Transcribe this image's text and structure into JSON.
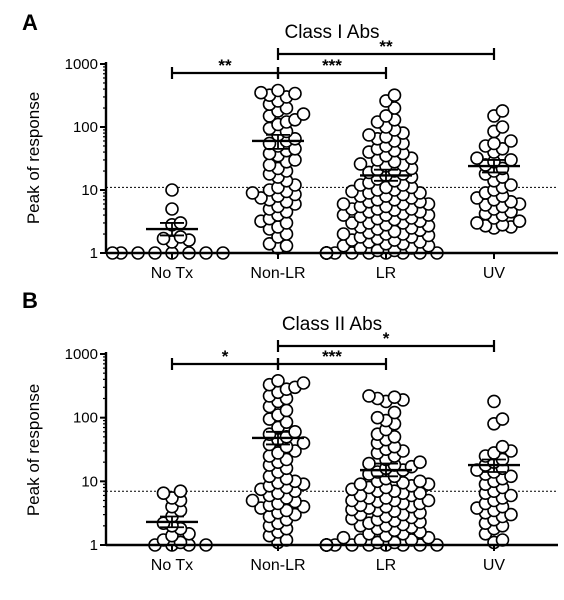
{
  "chart_data": [
    {
      "type": "scatter",
      "panel_label": "A",
      "title": "Class I Abs",
      "ylabel": "Peak of response",
      "xlabel": "",
      "y_scale": "log",
      "ylim": [
        1,
        1000
      ],
      "y_ticks": [
        1,
        10,
        100,
        1000
      ],
      "y_tick_labels": [
        "1",
        "10",
        "100",
        "1000"
      ],
      "categories": [
        "No Tx",
        "Non-LR",
        "LR",
        "UV"
      ],
      "threshold": 11,
      "threshold_style": "dotted",
      "groups": [
        {
          "name": "No Tx",
          "mean": 2.4,
          "sem_low": 1.9,
          "sem_high": 3.0,
          "values": [
            10,
            5,
            2.8,
            3,
            1.8,
            1.7,
            1.6,
            1.5,
            1,
            1,
            1,
            1,
            1,
            1,
            1,
            1
          ]
        },
        {
          "name": "Non-LR",
          "mean": 60,
          "sem_low": 45,
          "sem_high": 75,
          "values": [
            380,
            350,
            340,
            320,
            300,
            260,
            230,
            200,
            180,
            160,
            150,
            130,
            120,
            110,
            95,
            85,
            75,
            65,
            60,
            55,
            50,
            45,
            42,
            38,
            35,
            30,
            28,
            25,
            22,
            20,
            18,
            16,
            14,
            12,
            11,
            10,
            9.5,
            9,
            8.5,
            8,
            7.5,
            7,
            6.5,
            6,
            5.5,
            5,
            4.5,
            4,
            3.5,
            3.2,
            3,
            2.6,
            2.4,
            2,
            1.8,
            1.4,
            1.3,
            1.2
          ]
        },
        {
          "name": "LR",
          "mean": 17,
          "sem_low": 14,
          "sem_high": 21,
          "values": [
            320,
            260,
            200,
            150,
            130,
            120,
            100,
            90,
            80,
            75,
            70,
            65,
            60,
            55,
            50,
            45,
            42,
            40,
            38,
            35,
            32,
            30,
            28,
            26,
            25,
            24,
            22,
            21,
            20,
            19,
            18,
            17,
            16,
            15,
            14,
            13,
            12,
            12,
            11,
            11,
            10,
            10,
            9.5,
            9,
            9,
            8.5,
            8,
            8,
            7.5,
            7,
            7,
            6.5,
            6.5,
            6,
            6,
            6,
            5.5,
            5.5,
            5,
            5,
            5,
            4.8,
            4.5,
            4.5,
            4.2,
            4,
            4,
            4,
            3.8,
            3.6,
            3.5,
            3.4,
            3.2,
            3,
            3,
            3,
            2.8,
            2.7,
            2.6,
            2.5,
            2.4,
            2.3,
            2.2,
            2.1,
            2,
            2,
            2,
            1.9,
            1.8,
            1.8,
            1.7,
            1.6,
            1.6,
            1.5,
            1.5,
            1.4,
            1.4,
            1.3,
            1.3,
            1.2,
            1.2,
            1.1,
            1.1,
            1,
            1,
            1,
            1,
            1,
            1,
            1,
            1,
            1,
            1,
            1,
            1,
            1,
            1,
            1
          ]
        },
        {
          "name": "UV",
          "mean": 24,
          "sem_low": 19,
          "sem_high": 30,
          "values": [
            180,
            150,
            100,
            85,
            60,
            55,
            50,
            45,
            40,
            32,
            30,
            28,
            25,
            22,
            20,
            18,
            16,
            14,
            12,
            11,
            10,
            9,
            8,
            7.5,
            7,
            6.5,
            6,
            5.8,
            5.5,
            5,
            4.5,
            4.2,
            4,
            3.6,
            3.2,
            3,
            2.8,
            2.7,
            2.6,
            2.5
          ]
        }
      ],
      "significance": [
        {
          "from": "No Tx",
          "to": "Non-LR",
          "label": "**",
          "y": 700
        },
        {
          "from": "Non-LR",
          "to": "LR",
          "label": "***",
          "y": 700
        },
        {
          "from": "Non-LR",
          "to": "UV",
          "label": "**",
          "y": 1900
        }
      ]
    },
    {
      "type": "scatter",
      "panel_label": "B",
      "title": "Class II Abs",
      "ylabel": "Peak of response",
      "xlabel": "",
      "y_scale": "log",
      "ylim": [
        1,
        1000
      ],
      "y_ticks": [
        1,
        10,
        100,
        1000
      ],
      "y_tick_labels": [
        "1",
        "10",
        "100",
        "1000"
      ],
      "categories": [
        "No Tx",
        "Non-LR",
        "LR",
        "UV"
      ],
      "threshold": 7,
      "threshold_style": "dotted",
      "groups": [
        {
          "name": "No Tx",
          "mean": 2.3,
          "sem_low": 1.9,
          "sem_high": 2.8,
          "values": [
            7,
            6.5,
            5.5,
            5,
            4,
            3.5,
            2.8,
            2.2,
            2,
            1.8,
            1.5,
            1.4,
            1.2,
            1.1,
            1,
            1,
            1,
            1
          ]
        },
        {
          "name": "Non-LR",
          "mean": 48,
          "sem_low": 38,
          "sem_high": 60,
          "values": [
            380,
            350,
            330,
            300,
            280,
            250,
            220,
            200,
            180,
            150,
            130,
            110,
            95,
            85,
            70,
            60,
            55,
            50,
            45,
            40,
            38,
            35,
            30,
            28,
            25,
            22,
            20,
            18,
            16,
            14,
            12,
            11,
            10,
            9.5,
            9,
            8.5,
            8,
            7.5,
            7,
            6.5,
            6,
            5.5,
            5,
            4.8,
            4.5,
            4.2,
            4,
            3.8,
            3.5,
            3.2,
            3,
            2.8,
            2.5,
            2.2,
            2,
            1.8,
            1.6,
            1.4,
            1.2,
            1.1
          ]
        },
        {
          "name": "LR",
          "mean": 15,
          "sem_low": 12,
          "sem_high": 19,
          "values": [
            220,
            210,
            200,
            190,
            180,
            120,
            100,
            90,
            80,
            65,
            55,
            50,
            45,
            40,
            35,
            32,
            30,
            28,
            25,
            22,
            20,
            19,
            18,
            17,
            16,
            15,
            14,
            13,
            12,
            11,
            10,
            10,
            9.5,
            9,
            9,
            8.5,
            8,
            8,
            7.5,
            7,
            7,
            6.5,
            6.5,
            6,
            6,
            5.5,
            5.5,
            5,
            5,
            5,
            4.8,
            4.5,
            4.5,
            4.2,
            4,
            4,
            3.8,
            3.6,
            3.5,
            3.4,
            3.2,
            3,
            3,
            2.8,
            2.7,
            2.6,
            2.5,
            2.4,
            2.3,
            2.2,
            2.1,
            2,
            2,
            1.9,
            1.8,
            1.7,
            1.6,
            1.5,
            1.5,
            1.4,
            1.3,
            1.3,
            1.2,
            1.2,
            1.1,
            1.1,
            1,
            1,
            1,
            1,
            1,
            1,
            1,
            1,
            1,
            1,
            1,
            1,
            1,
            1
          ]
        },
        {
          "name": "UV",
          "mean": 18,
          "sem_low": 14,
          "sem_high": 22,
          "values": [
            180,
            95,
            80,
            35,
            30,
            28,
            25,
            22,
            20,
            18,
            16,
            15,
            14,
            13,
            12,
            11,
            10,
            9,
            8,
            7,
            6.5,
            6,
            5.5,
            5,
            4.5,
            4,
            3.8,
            3.5,
            3.2,
            3,
            2.8,
            2.5,
            2.2,
            2,
            1.8,
            1.5,
            1.2,
            1.1
          ]
        }
      ],
      "significance": [
        {
          "from": "No Tx",
          "to": "Non-LR",
          "label": "*",
          "y": 700
        },
        {
          "from": "Non-LR",
          "to": "LR",
          "label": "***",
          "y": 700
        },
        {
          "from": "Non-LR",
          "to": "UV",
          "label": "*",
          "y": 1900
        }
      ]
    }
  ]
}
